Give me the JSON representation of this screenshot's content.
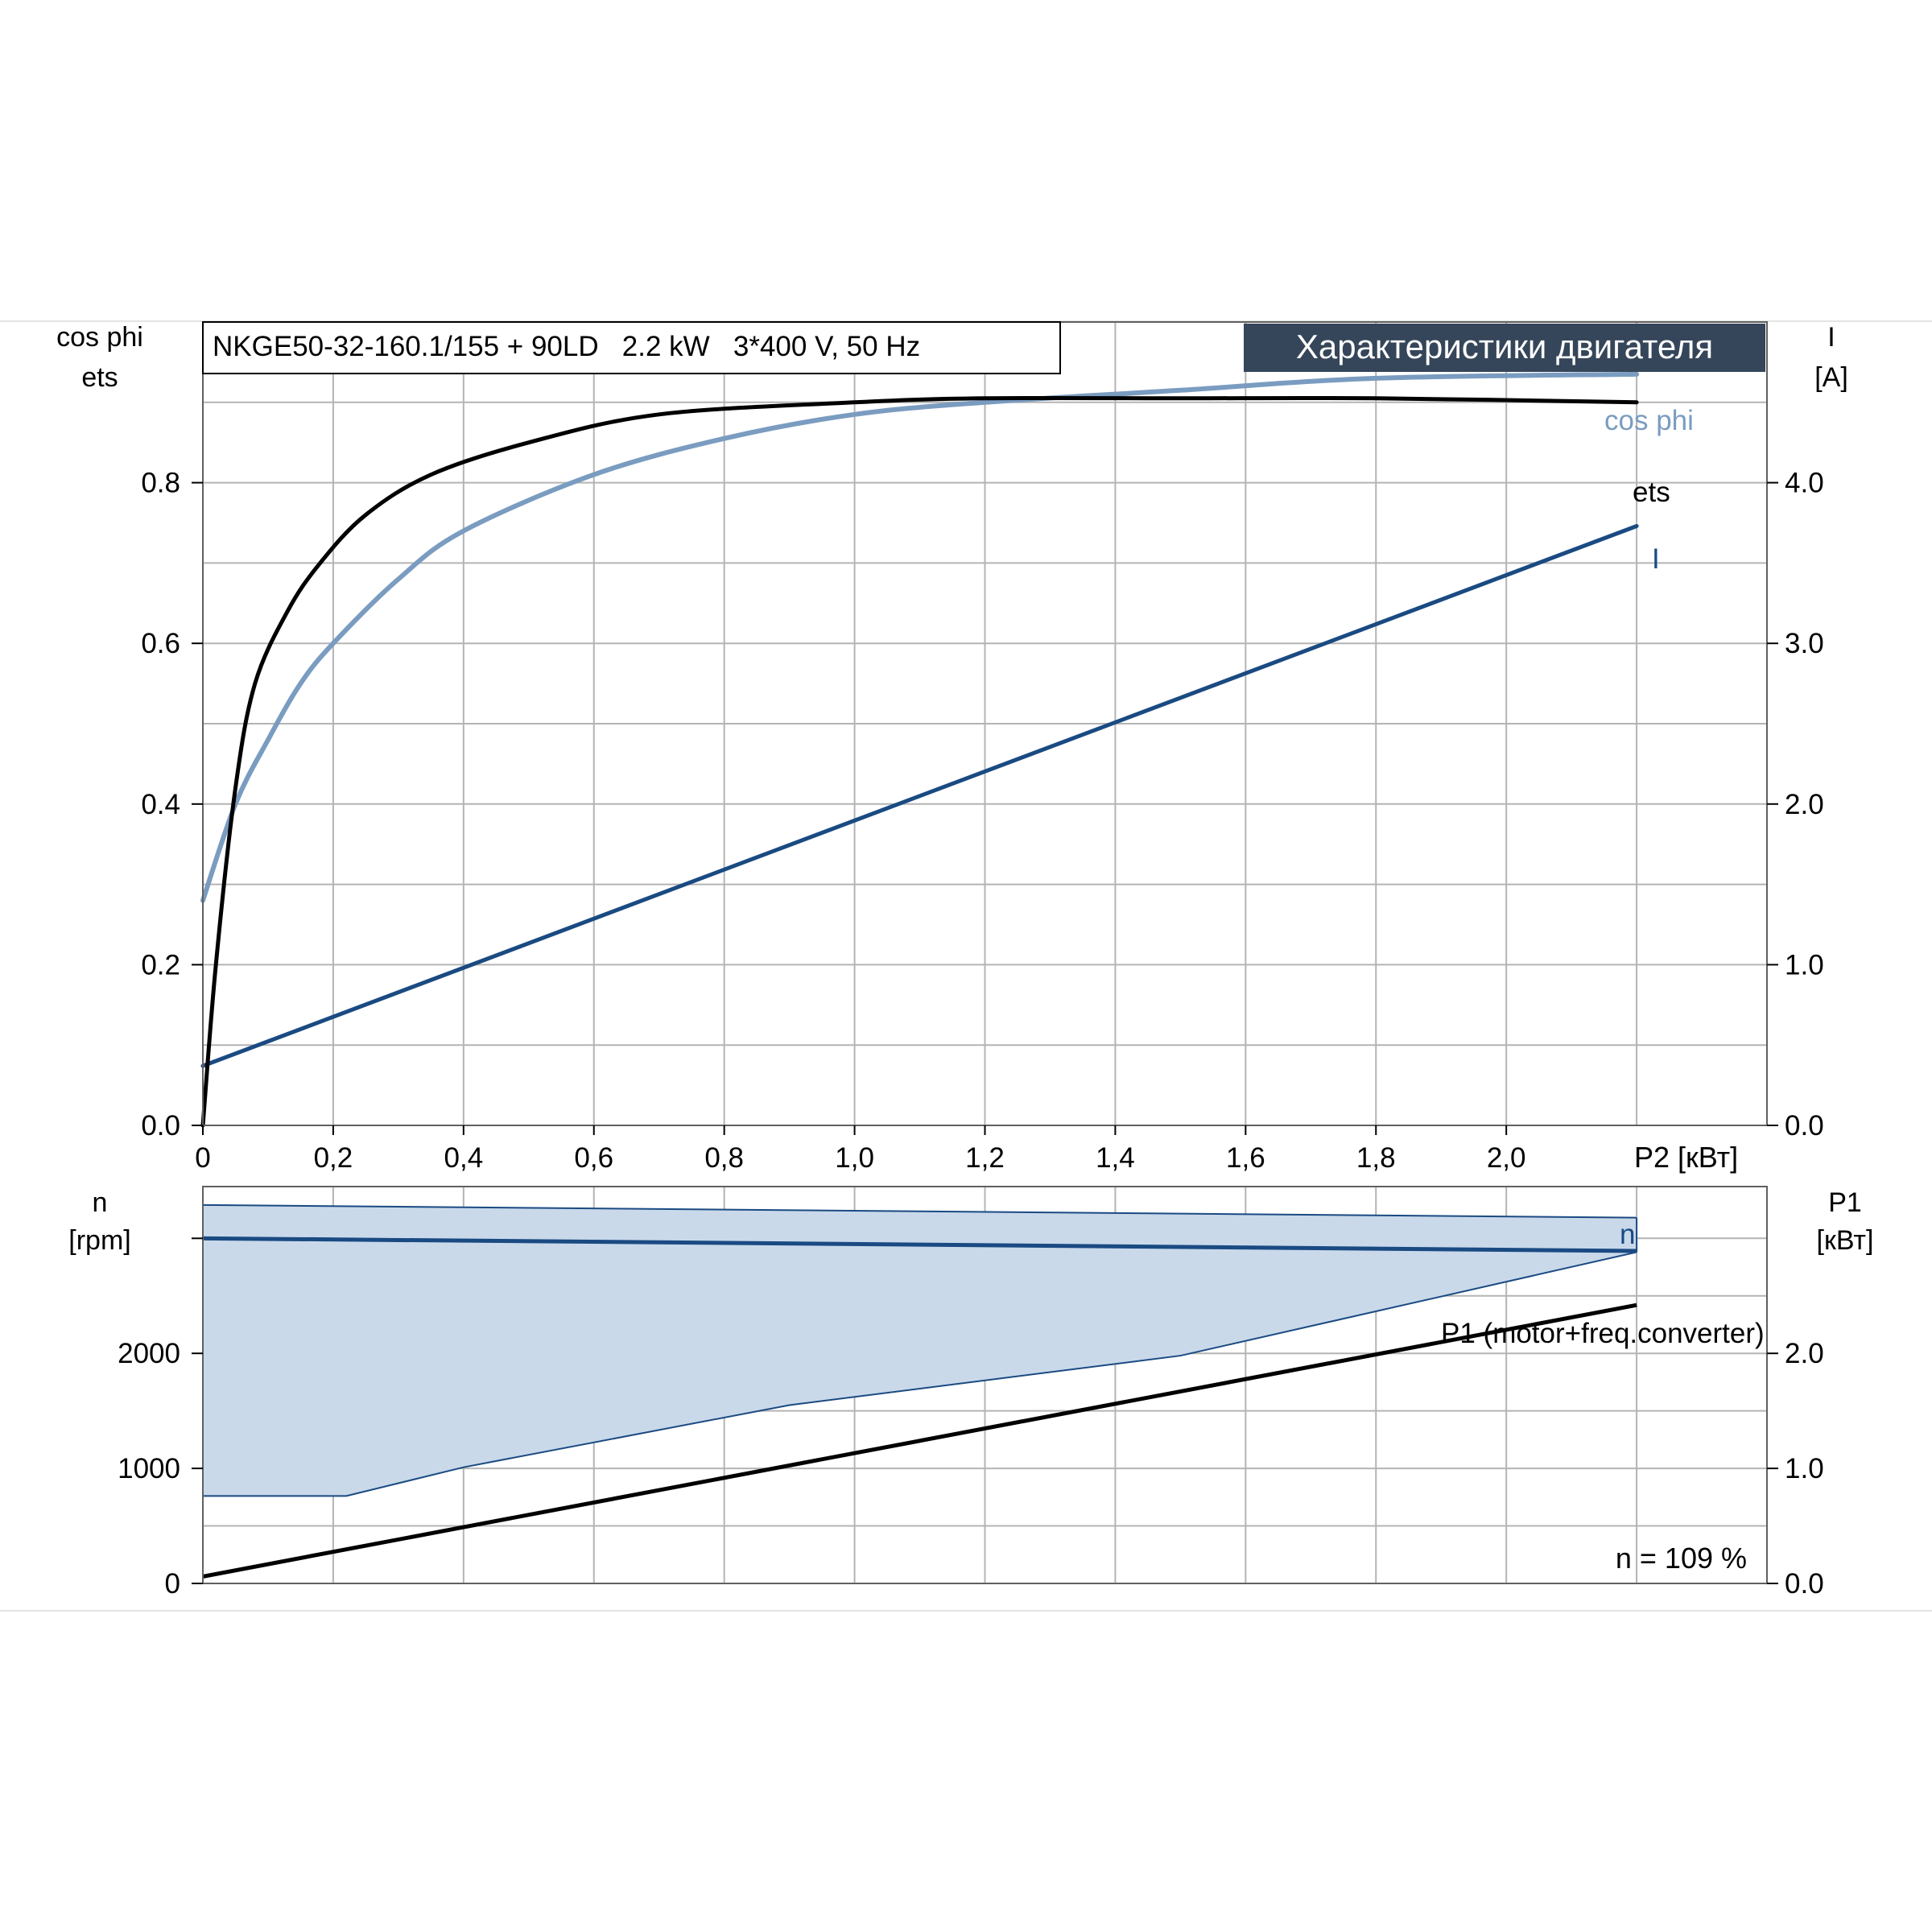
{
  "header": {
    "model_text": "NKGE50-32-160.1/155 + 90LD   2.2 kW   3*400 V, 50 Hz",
    "title_text": "Характеристики двигателя"
  },
  "colors": {
    "ets": "#000000",
    "cos_phi": "#7a9cc0",
    "current": "#1a4a82",
    "n": "#1a4a82",
    "n_range_fill": "#c9d9ea",
    "p1": "#000000",
    "grid": "#b4b4b4",
    "title_bg": "#36465a"
  },
  "chart_data": [
    {
      "type": "line",
      "panel": "upper",
      "xlabel": "P2 [кВт]",
      "x_ticks": [
        "0",
        "0,2",
        "0,4",
        "0,6",
        "0,8",
        "1,0",
        "1,2",
        "1,4",
        "1,6",
        "1,8",
        "2,0"
      ],
      "xlim": [
        0,
        2.4
      ],
      "y_left_label": [
        "cos phi",
        "ets"
      ],
      "y_left_ticks": [
        "0.0",
        "0.2",
        "0.4",
        "0.6",
        "0.8"
      ],
      "y_left_lim": [
        0,
        1.0
      ],
      "y_right_label": [
        "I",
        "[A]"
      ],
      "y_right_ticks": [
        "0.0",
        "1.0",
        "2.0",
        "3.0",
        "4.0"
      ],
      "y_right_lim": [
        0,
        5.0
      ],
      "grid": true,
      "series": [
        {
          "name": "ets",
          "axis": "left",
          "color": "#000000",
          "x": [
            0,
            0.02,
            0.05,
            0.08,
            0.13,
            0.18,
            0.25,
            0.35,
            0.5,
            0.7,
            1.0,
            1.2,
            1.5,
            1.8,
            2.2
          ],
          "y": [
            0,
            0.2,
            0.42,
            0.55,
            0.64,
            0.7,
            0.76,
            0.81,
            0.85,
            0.885,
            0.9,
            0.905,
            0.905,
            0.905,
            0.9
          ]
        },
        {
          "name": "cos phi",
          "axis": "left",
          "color": "#7a9cc0",
          "x": [
            0,
            0.05,
            0.1,
            0.15,
            0.2,
            0.3,
            0.4,
            0.6,
            0.8,
            1.0,
            1.2,
            1.5,
            1.8,
            2.2
          ],
          "y": [
            0.28,
            0.4,
            0.48,
            0.55,
            0.6,
            0.68,
            0.74,
            0.81,
            0.855,
            0.885,
            0.9,
            0.915,
            0.93,
            0.935
          ]
        },
        {
          "name": "I",
          "axis": "right",
          "color": "#1a4a82",
          "x": [
            0,
            2.2
          ],
          "y": [
            0.37,
            3.73
          ]
        }
      ]
    },
    {
      "type": "line",
      "panel": "lower",
      "annotation": "n = 109 %",
      "xlim": [
        0,
        2.4
      ],
      "y_left_label": [
        "n",
        "[rpm]"
      ],
      "y_left_ticks": [
        "0",
        "1000",
        "2000"
      ],
      "y_left_lim": [
        0,
        3450
      ],
      "y_right_label": [
        "P1",
        "[кВт]"
      ],
      "y_right_ticks": [
        "0.0",
        "1.0",
        "2.0"
      ],
      "y_right_lim": [
        0,
        3.45
      ],
      "grid": true,
      "series": [
        {
          "name": "n",
          "axis": "left",
          "color": "#1a4a82",
          "x": [
            0,
            2.2
          ],
          "y": [
            3000,
            2890
          ]
        },
        {
          "name": "P1 (motor+freq.converter)",
          "axis": "right",
          "color": "#000000",
          "x": [
            0,
            2.2
          ],
          "y": [
            0.06,
            2.42
          ]
        }
      ],
      "range_band": {
        "upper_x": [
          0,
          2.2
        ],
        "upper_y": [
          3290,
          3180
        ],
        "lower_x": [
          0,
          0.22,
          0.4,
          0.9,
          1.5,
          2.2
        ],
        "lower_y": [
          760,
          760,
          1010,
          1550,
          1980,
          2880
        ]
      }
    }
  ]
}
